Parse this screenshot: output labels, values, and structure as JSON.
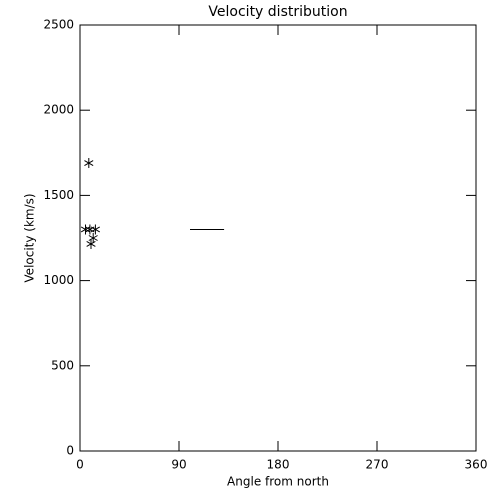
{
  "chart_data": {
    "type": "scatter",
    "title": "Velocity distribution",
    "x_label": "Angle from north",
    "y_label": "Velocity (km/s)",
    "x": [
      8,
      5,
      9,
      14,
      12,
      10
    ],
    "values": [
      1690,
      1300,
      1300,
      1300,
      1250,
      1215
    ],
    "color": "#000000",
    "segment": {
      "x": [
        100,
        131
      ],
      "y": 1300
    },
    "xlim": [
      0,
      360
    ],
    "xticks": [
      0,
      90,
      180,
      270,
      360
    ],
    "ylim": [
      0,
      2500
    ],
    "yticks": [
      0,
      500,
      1000,
      1500,
      2000,
      2500
    ]
  }
}
